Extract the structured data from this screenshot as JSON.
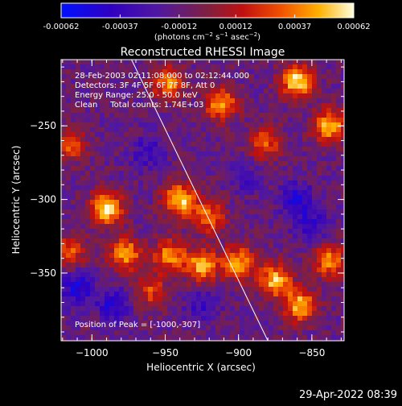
{
  "colorbar": {
    "tick_labels": [
      "-0.00062",
      "-0.00037",
      "-0.00012",
      "0.00012",
      "0.00037",
      "0.00062"
    ],
    "min": -0.00062,
    "max": 0.00062
  },
  "chart_data": {
    "type": "heatmap",
    "title": "Reconstructed RHESSI Image",
    "xlabel": "Heliocentric X (arcsec)",
    "ylabel": "Heliocentric Y (arcsec)",
    "xlim": [
      -1021,
      -828
    ],
    "ylim": [
      -396,
      -205
    ],
    "x_ticks": [
      -1000,
      -950,
      -900,
      -850
    ],
    "y_ticks": [
      -250,
      -300,
      -350
    ],
    "x_tick_labels": [
      "−1000",
      "−950",
      "−900",
      "−850"
    ],
    "y_tick_labels": [
      "−250",
      "−300",
      "−350"
    ],
    "info_lines": [
      "28-Feb-2003 02:11:08.000 to 02:12:44.000",
      "Detectors: 3F 4F 5F 6F 7F 8F, Att 0",
      "Energy Range: 25.0 - 50.0 keV",
      "Clean     Total counts: 1.74E+03"
    ],
    "peak_label": "Position of Peak = [-1000,-307]",
    "limb_line": [
      [
        -973,
        -205
      ],
      [
        -880,
        -396
      ]
    ],
    "bright_regions": [
      {
        "x": -990,
        "y": -306,
        "value": 0.00062
      },
      {
        "x": -977,
        "y": -337,
        "value": 0.00045
      },
      {
        "x": -948,
        "y": -221,
        "value": 0.0004
      },
      {
        "x": -912,
        "y": -235,
        "value": 0.00045
      },
      {
        "x": -940,
        "y": -300,
        "value": 0.00055
      },
      {
        "x": -920,
        "y": -312,
        "value": 0.00035
      },
      {
        "x": -947,
        "y": -338,
        "value": 0.0004
      },
      {
        "x": -925,
        "y": -345,
        "value": 0.00048
      },
      {
        "x": -900,
        "y": -343,
        "value": 0.00045
      },
      {
        "x": -875,
        "y": -355,
        "value": 0.0005
      },
      {
        "x": -858,
        "y": -372,
        "value": 0.0005
      },
      {
        "x": -838,
        "y": -342,
        "value": 0.0004
      },
      {
        "x": -860,
        "y": -220,
        "value": 0.00058
      },
      {
        "x": -838,
        "y": -250,
        "value": 0.0005
      },
      {
        "x": -882,
        "y": -262,
        "value": 0.0003
      },
      {
        "x": -1015,
        "y": -263,
        "value": 0.0003
      },
      {
        "x": -1015,
        "y": -335,
        "value": 0.00028
      },
      {
        "x": -960,
        "y": -362,
        "value": 0.00025
      }
    ],
    "dark_regions": [
      {
        "x": -1010,
        "y": -360,
        "value": -0.0005
      },
      {
        "x": -985,
        "y": -372,
        "value": -0.00045
      },
      {
        "x": -962,
        "y": -268,
        "value": -0.00035
      },
      {
        "x": -925,
        "y": -372,
        "value": -0.00035
      },
      {
        "x": -860,
        "y": -300,
        "value": -0.00045
      },
      {
        "x": -850,
        "y": -318,
        "value": -0.0004
      },
      {
        "x": -895,
        "y": -285,
        "value": -0.0003
      }
    ]
  },
  "footer": {
    "timestamp": "29-Apr-2022 08:39"
  }
}
